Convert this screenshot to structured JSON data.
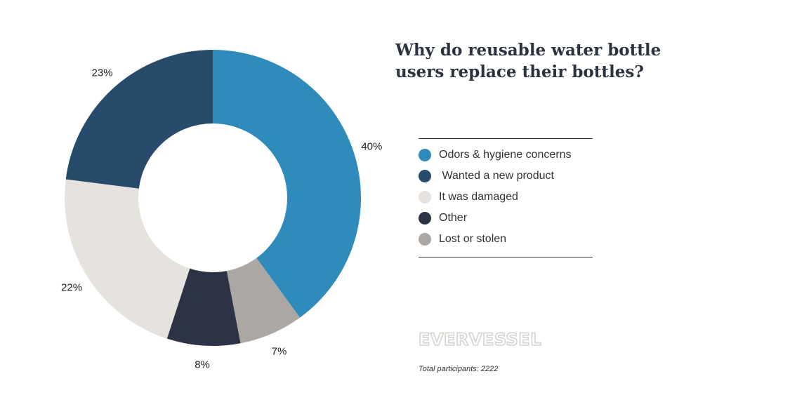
{
  "title": "Why do reusable water bottle users replace their bottles?",
  "chart_data": {
    "type": "pie",
    "variant": "donut",
    "title": "Why do reusable water bottle users replace their bottles?",
    "categories": [
      "Odors & hygiene concerns",
      "Lost or stolen",
      "Other",
      "It was damaged",
      "Wanted a new product"
    ],
    "values": [
      40,
      7,
      8,
      22,
      23
    ],
    "labels": [
      "40%",
      "7%",
      "8%",
      "22%",
      "23%"
    ],
    "colors": [
      "#2e8bbb",
      "#aca7a3",
      "#2c3345",
      "#e6e2dd",
      "#264b6b"
    ],
    "legend_position": "right",
    "legend": [
      {
        "label": "Odors & hygiene concerns",
        "color": "#2e8bbb"
      },
      {
        "label": " Wanted a new product",
        "color": "#264b6b"
      },
      {
        "label": "It was damaged",
        "color": "#e6e2dd"
      },
      {
        "label": "Other",
        "color": "#2c3345"
      },
      {
        "label": "Lost or stolen",
        "color": "#aca7a3"
      }
    ]
  },
  "brand": "EVERVESSEL",
  "footnote": "Total participants: 2222"
}
